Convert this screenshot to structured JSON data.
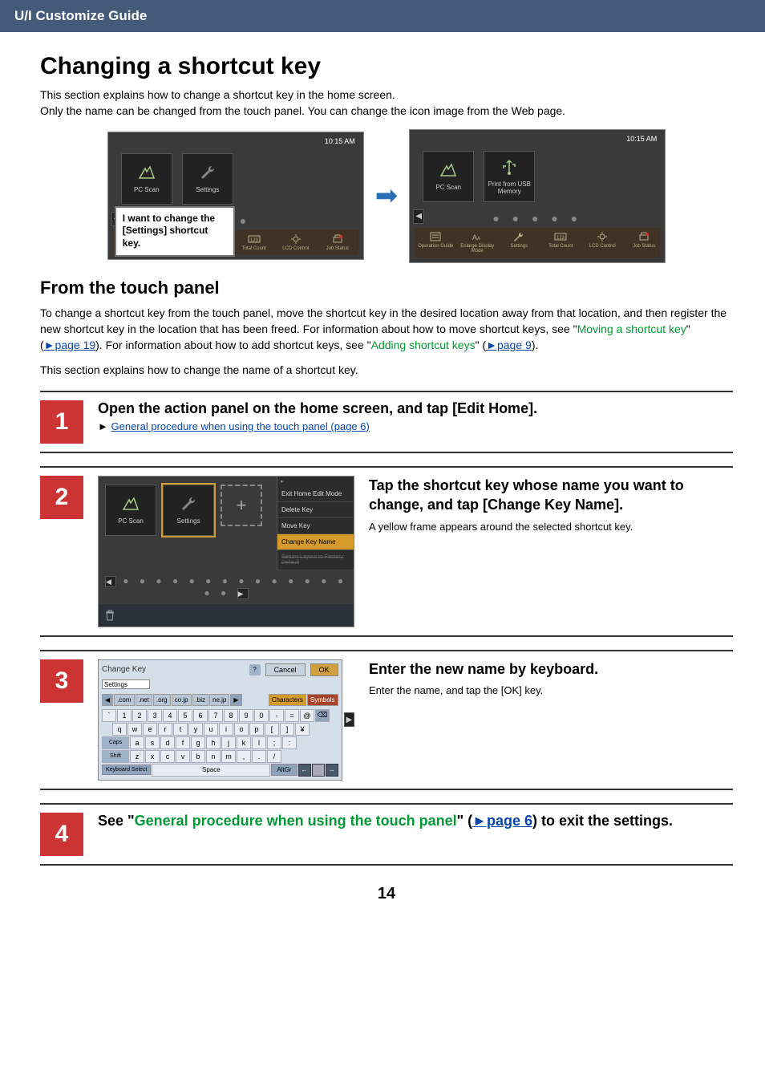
{
  "header": {
    "title": "U/I Customize Guide"
  },
  "page": {
    "h1": "Changing a shortcut key",
    "intro_l1": "This section explains how to change a shortcut key in the home screen.",
    "intro_l2": "Only the name can be changed from the touch panel. You can change the icon image from the Web page.",
    "h2": "From the touch panel",
    "para_before_link1": "To change a shortcut key from the touch panel, move the shortcut key in the desired location away from that location, and then register the new shortcut key in the location that has been freed. For information about how to move shortcut keys, see \"",
    "link1_text": "Moving a shortcut key",
    "link1_ref": "►page 19",
    "para_mid": "). For information about how to add shortcut keys, see \"",
    "link2_text": "Adding shortcut keys",
    "link2_ref": "►page 9",
    "para_after": "This section explains how to change the name of a shortcut key.",
    "pagenum": "14"
  },
  "screenshots": {
    "time": "10:15 AM",
    "items": {
      "pcscan": "PC Scan",
      "settings": "Settings",
      "printusb": "Print from USB Memory"
    },
    "callout_l1": "I want to change the [Settings] shortcut key.",
    "dots_small": "● ●",
    "dots_large": "● ● ● ● ●",
    "footer": {
      "op_guide": "Operation Guide",
      "enlarge": "Enlarge Display Mode",
      "settings": "Settings",
      "total": "Total Count",
      "lcd": "LCD Control",
      "job": "Job Status"
    }
  },
  "steps": {
    "s1": {
      "num": "1",
      "title": "Open the action panel on the home screen, and tap [Edit Home].",
      "link": "General procedure when using the touch panel (page 6)",
      "tri": "►"
    },
    "s2": {
      "num": "2",
      "title": "Tap the shortcut key whose name you want to change, and tap [Change Key Name].",
      "desc": "A yellow frame appears around the selected shortcut key.",
      "menu": {
        "exit": "Exit Home Edit Mode",
        "delete": "Delete Key",
        "move": "Move Key",
        "change": "Change Key Name",
        "reset": "Return Layout to Factory Default"
      },
      "dots": "● ● ● ● ● ● ● ● ● ● ● ● ● ● ● ●"
    },
    "s3": {
      "num": "3",
      "title": "Enter the new name by keyboard.",
      "desc": "Enter the name, and tap the [OK] key.",
      "kbd": {
        "title": "Change Key",
        "help": "?",
        "cancel": "Cancel",
        "ok": "OK",
        "input": "Settings",
        "tlds": [
          ".com",
          ".net",
          ".org",
          "co.jp",
          ".biz",
          "ne.jp"
        ],
        "characters": "Characters",
        "symbols": "Symbols",
        "row1": [
          "`",
          "1",
          "2",
          "3",
          "4",
          "5",
          "6",
          "7",
          "8",
          "9",
          "0",
          "-",
          "=",
          "@",
          "⌫"
        ],
        "row2": [
          "q",
          "w",
          "e",
          "r",
          "t",
          "y",
          "u",
          "i",
          "o",
          "p",
          "[",
          "]",
          "¥"
        ],
        "row3_caps": "Caps",
        "row3": [
          "a",
          "s",
          "d",
          "f",
          "g",
          "h",
          "j",
          "k",
          "l",
          ";",
          ":"
        ],
        "row4_shift": "Shift",
        "row4": [
          "z",
          "x",
          "c",
          "v",
          "b",
          "n",
          "m",
          ",",
          ".",
          "/"
        ],
        "kbsel": "Keyboard Select",
        "space": "Space",
        "altgr": "AltGr",
        "left": "←",
        "right": "→"
      }
    },
    "s4": {
      "num": "4",
      "pre": "See \"",
      "link": "General procedure when using the touch panel",
      "mid": "\" (",
      "ref": "►page 6",
      "post": ") to exit the settings."
    }
  },
  "colors": {
    "headerbar": "#445a78",
    "stepnum_bg": "#cc3333",
    "link": "#0645ad",
    "green": "#009933",
    "highlight": "#d49b2a",
    "screen_bg": "#3a3a3a",
    "footer_bg": "#403224"
  }
}
